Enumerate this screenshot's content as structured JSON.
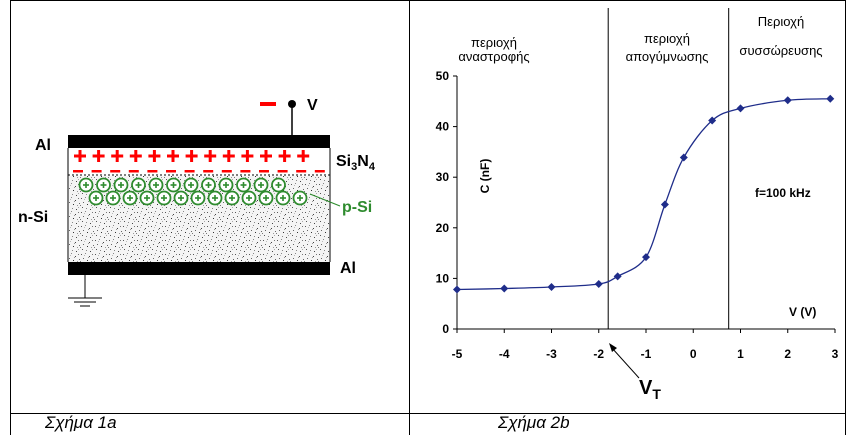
{
  "figure_a": {
    "caption": "Σχήμα 1a",
    "labels": {
      "al_top": "Al",
      "al_bottom": "Al",
      "n_si": "n-Si",
      "p_si": "p-Si",
      "voltage": "V",
      "voltage_sign": "−",
      "insulator_base": "Si",
      "insulator_sub3": "3",
      "insulator_n": "N",
      "insulator_sub4": "4"
    },
    "colors": {
      "plus": "#ff0000",
      "minus": "#ff0000",
      "hole": "#2e8b2e",
      "metal": "#000000"
    }
  },
  "figure_b": {
    "caption": "Σχήμα 2b",
    "region_labels": {
      "inversion_l1": "περιοχή",
      "inversion_l2": "αναστροφής",
      "depletion_l1": "περιοχή",
      "depletion_l2": "απογύμνωσης",
      "accumulation_l1": "Περιοχή",
      "accumulation_l2": "συσσώρευσης"
    },
    "ylabel": "C (nF)",
    "xlabel": "V (V)",
    "freq_label": "f=100 kHz",
    "vt_label_main": "V",
    "vt_label_sub": "T",
    "colors": {
      "series": "#1f2d8a"
    }
  },
  "chart_data": {
    "type": "line",
    "title": "",
    "xlabel": "V (V)",
    "ylabel": "C (nF)",
    "xlim": [
      -5,
      3
    ],
    "ylim": [
      0,
      50
    ],
    "xticks": [
      -5,
      -4,
      -3,
      -2,
      -1,
      0,
      1,
      2,
      3
    ],
    "yticks": [
      0,
      10,
      20,
      30,
      40,
      50
    ],
    "grid": false,
    "series": [
      {
        "x": [
          -5,
          -4,
          -3,
          -2,
          -1.6,
          -1.0,
          -0.6,
          -0.2,
          0.4,
          1.0,
          2.0,
          2.9
        ],
        "y": [
          7.8,
          8.0,
          8.3,
          8.9,
          10.4,
          14.2,
          24.6,
          33.9,
          41.2,
          43.6,
          45.2,
          45.5
        ]
      }
    ],
    "vlines": [
      -1.8,
      0.75
    ]
  }
}
